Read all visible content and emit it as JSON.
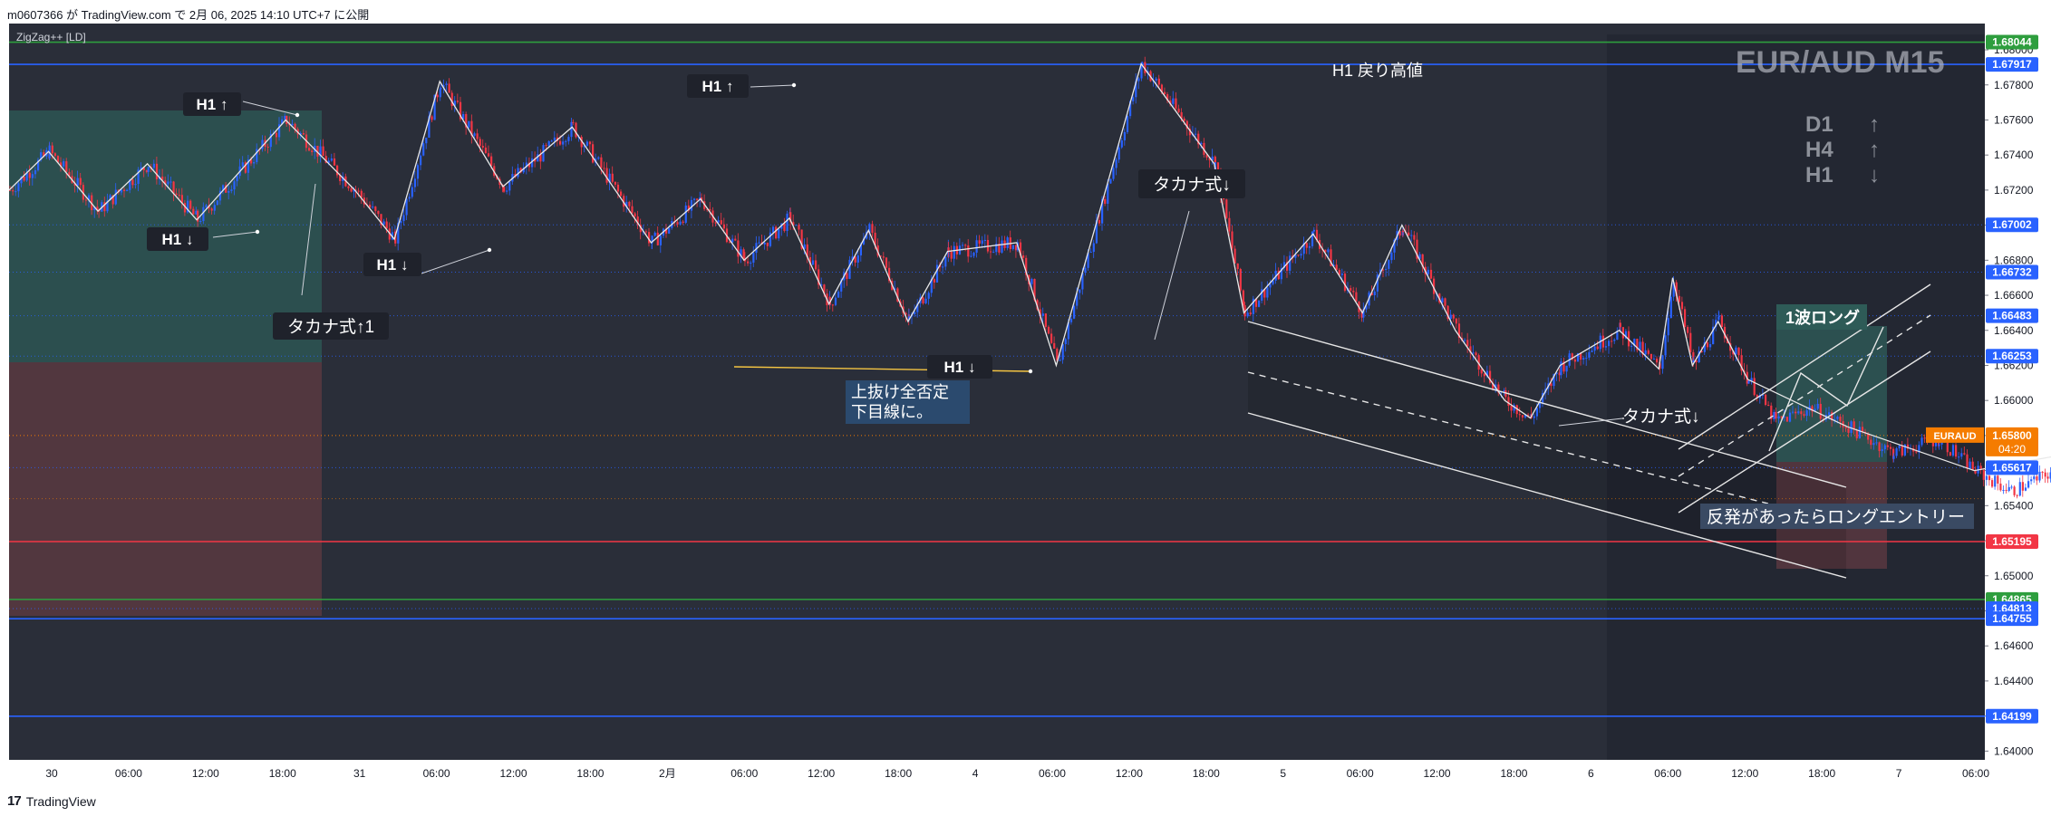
{
  "header": {
    "published_text": "m0607366 が TradingView.com で 2月 06, 2025 14:10 UTC+7 に公開"
  },
  "footer": {
    "logo_mark": "17",
    "brand": "TradingView"
  },
  "chart_data": {
    "type": "candlestick",
    "symbol_label": "EUR/AUD M15",
    "indicator_label": "ZigZag++ [LD]",
    "ylim": [
      1.6395,
      1.6815
    ],
    "y_ticks": [
      1.64,
      1.642,
      1.644,
      1.646,
      1.648,
      1.65,
      1.652,
      1.654,
      1.656,
      1.658,
      1.66,
      1.662,
      1.664,
      1.666,
      1.668,
      1.67,
      1.672,
      1.674,
      1.676,
      1.678,
      1.68
    ],
    "y_tick_labels": [
      "1.64000",
      "1.64200",
      "1.64400",
      "1.64600",
      "1.64800",
      "1.65000",
      "1.65200",
      "1.65400",
      "1.65600",
      "1.65800",
      "1.66000",
      "1.66200",
      "1.66400",
      "1.66600",
      "1.66800",
      "1.67000",
      "1.67200",
      "1.67400",
      "1.67600",
      "1.67800",
      "1.68000"
    ],
    "x_labels": [
      "30",
      "06:00",
      "12:00",
      "18:00",
      "31",
      "06:00",
      "12:00",
      "18:00",
      "2月",
      "06:00",
      "12:00",
      "18:00",
      "4",
      "06:00",
      "12:00",
      "18:00",
      "5",
      "06:00",
      "12:00",
      "18:00",
      "6",
      "06:00",
      "12:00",
      "18:00",
      "7",
      "06:00"
    ],
    "price_markers": [
      {
        "label": "1.68044",
        "value": 1.68044,
        "color": "#2e9e3e"
      },
      {
        "label": "1.67917",
        "value": 1.67917,
        "color": "#2962ff"
      },
      {
        "label": "1.67002",
        "value": 1.67002,
        "color": "#2962ff"
      },
      {
        "label": "1.66732",
        "value": 1.66732,
        "color": "#2962ff"
      },
      {
        "label": "1.66483",
        "value": 1.66483,
        "color": "#2962ff"
      },
      {
        "label": "1.66253",
        "value": 1.66253,
        "color": "#2962ff"
      },
      {
        "label": "1.65617",
        "value": 1.65617,
        "color": "#2962ff"
      },
      {
        "label": "1.65195",
        "value": 1.65195,
        "color": "#f23645"
      },
      {
        "label": "1.64865",
        "value": 1.64865,
        "color": "#2e9e3e"
      },
      {
        "label": "1.64813",
        "value": 1.64813,
        "color": "#2962ff"
      },
      {
        "label": "1.64755",
        "value": 1.64755,
        "color": "#2962ff"
      },
      {
        "label": "1.64199",
        "value": 1.64199,
        "color": "#2962ff"
      }
    ],
    "current_price": {
      "symbol": "EURAUD",
      "value": 1.658,
      "label": "1.65800",
      "countdown": "04:20",
      "color": "#f57c00"
    },
    "zigzag_pivots": [
      [
        0.0,
        1.672
      ],
      [
        0.02,
        1.6742
      ],
      [
        0.045,
        1.6708
      ],
      [
        0.07,
        1.6735
      ],
      [
        0.095,
        1.6703
      ],
      [
        0.14,
        1.676
      ],
      [
        0.175,
        1.672
      ],
      [
        0.195,
        1.6692
      ],
      [
        0.218,
        1.6782
      ],
      [
        0.25,
        1.6722
      ],
      [
        0.285,
        1.6756
      ],
      [
        0.325,
        1.669
      ],
      [
        0.35,
        1.6715
      ],
      [
        0.372,
        1.668
      ],
      [
        0.395,
        1.6704
      ],
      [
        0.415,
        1.6655
      ],
      [
        0.435,
        1.6697
      ],
      [
        0.455,
        1.6645
      ],
      [
        0.475,
        1.6685
      ],
      [
        0.51,
        1.669
      ],
      [
        0.53,
        1.662
      ],
      [
        0.573,
        1.6792
      ],
      [
        0.61,
        1.6735
      ],
      [
        0.625,
        1.665
      ],
      [
        0.66,
        1.6695
      ],
      [
        0.685,
        1.665
      ],
      [
        0.705,
        1.67
      ],
      [
        0.732,
        1.664
      ],
      [
        0.757,
        1.66
      ],
      [
        0.77,
        1.659
      ],
      [
        0.785,
        1.662
      ],
      [
        0.815,
        1.664
      ],
      [
        0.835,
        1.6618
      ],
      [
        0.842,
        1.667
      ],
      [
        0.852,
        1.662
      ],
      [
        0.865,
        1.6645
      ],
      [
        0.88,
        1.6612
      ]
    ],
    "annotations": [
      {
        "text": "H1 ↑"
      },
      {
        "text": "H1 ↓"
      },
      {
        "text": "H1 ↓"
      },
      {
        "text": "タカナ式↑1"
      },
      {
        "text": "H1 ↑"
      },
      {
        "text": "H1 戻り高値"
      },
      {
        "text": "タカナ式↓"
      },
      {
        "text": "H1 ↓"
      },
      {
        "text": "上抜け全否定"
      },
      {
        "text": "下目線に。"
      },
      {
        "text": "タカナ式↓"
      },
      {
        "text": "1波ロング"
      },
      {
        "text": "反発があったらロングエントリー"
      }
    ],
    "trend_summary": [
      {
        "tf": "D1",
        "arrow": "↑"
      },
      {
        "tf": "H4",
        "arrow": "↑"
      },
      {
        "tf": "H1",
        "arrow": "↓"
      }
    ]
  }
}
